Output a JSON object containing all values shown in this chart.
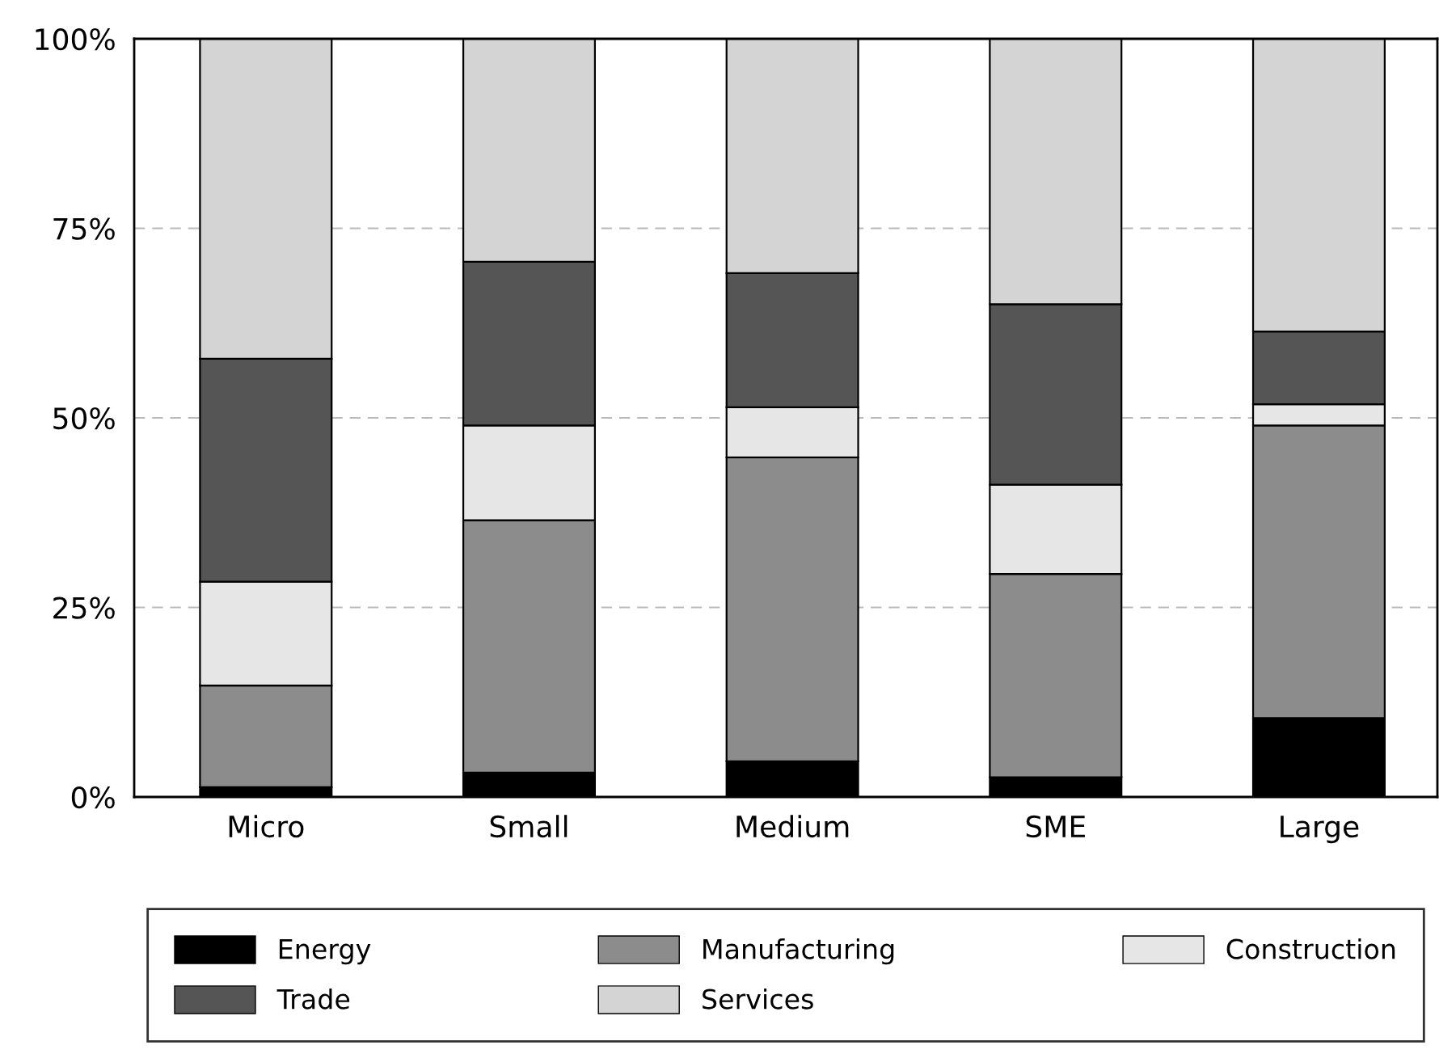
{
  "chart_data": {
    "type": "bar",
    "stacked": true,
    "categories": [
      "Micro",
      "Small",
      "Medium",
      "SME",
      "Large"
    ],
    "series": [
      {
        "name": "Energy",
        "color": "#000000",
        "values": [
          1.3,
          3.2,
          4.7,
          2.6,
          10.4
        ]
      },
      {
        "name": "Manufacturing",
        "color": "#8c8c8c",
        "values": [
          13.4,
          33.3,
          40.1,
          26.8,
          38.6
        ]
      },
      {
        "name": "Construction",
        "color": "#e6e6e6",
        "values": [
          13.7,
          12.5,
          6.6,
          11.8,
          2.8
        ]
      },
      {
        "name": "Trade",
        "color": "#555555",
        "values": [
          29.4,
          21.6,
          17.7,
          23.8,
          9.6
        ]
      },
      {
        "name": "Services",
        "color": "#d4d4d4",
        "values": [
          42.2,
          29.4,
          30.9,
          35.0,
          38.6
        ]
      }
    ],
    "ylim": [
      0,
      100
    ],
    "yticks": [
      {
        "value": 0,
        "label": "0%"
      },
      {
        "value": 25,
        "label": "25%"
      },
      {
        "value": 50,
        "label": "50%"
      },
      {
        "value": 75,
        "label": "75%"
      },
      {
        "value": 100,
        "label": "100%"
      }
    ],
    "grid": "y",
    "legend": "bottom"
  }
}
